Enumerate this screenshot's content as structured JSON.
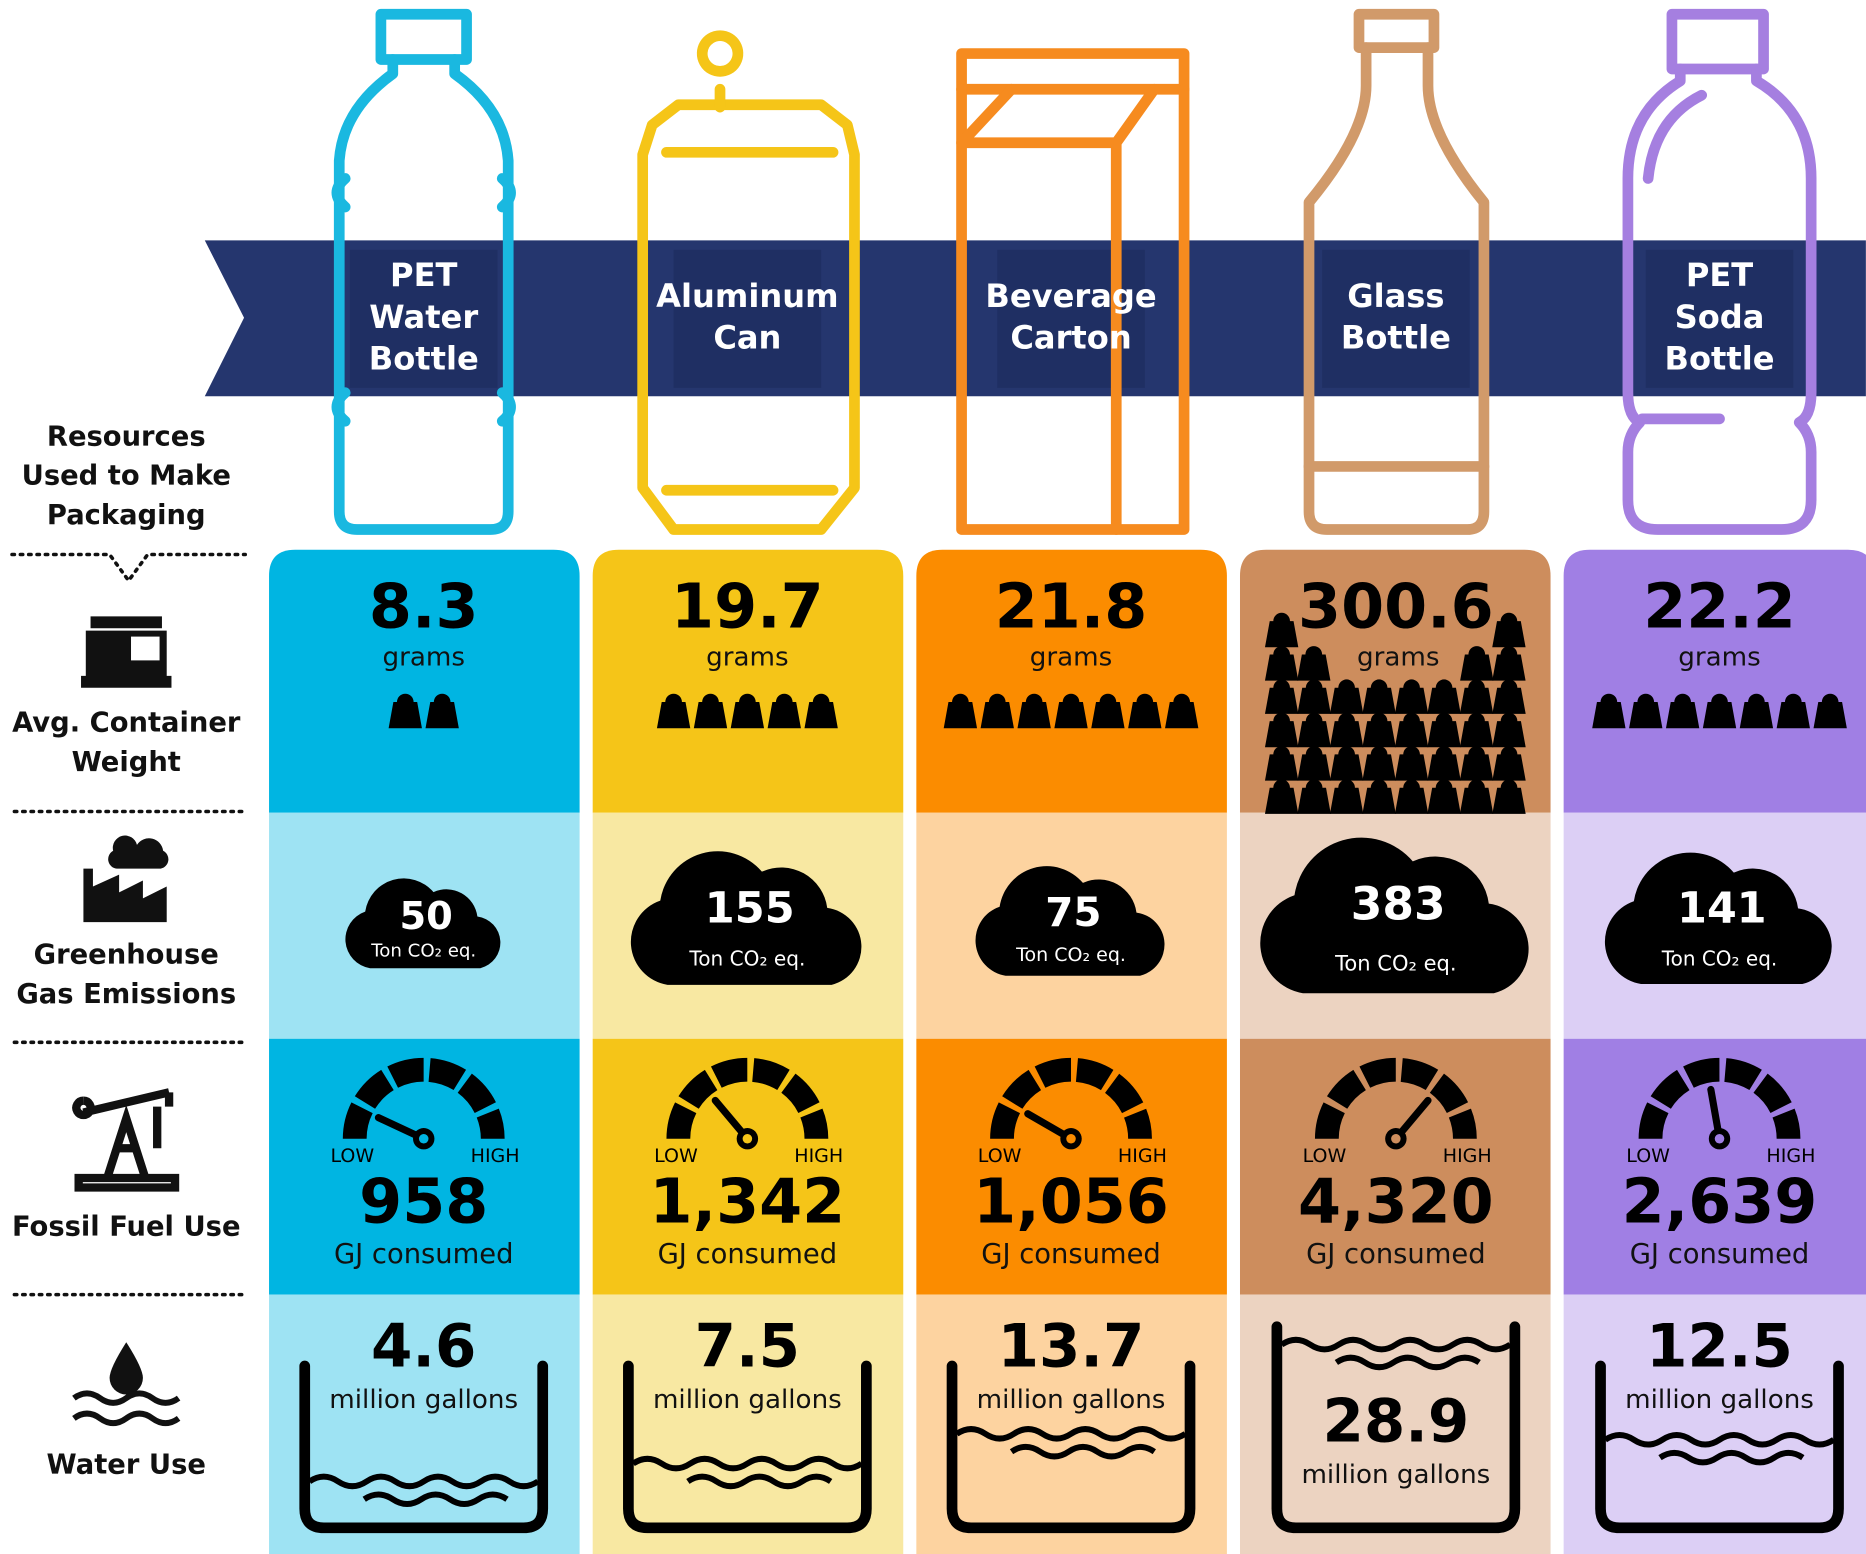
{
  "row_labels": {
    "resources": [
      "Resources",
      "Used to Make",
      "Packaging"
    ],
    "weight": [
      "Avg. Container",
      "Weight"
    ],
    "emissions": [
      "Greenhouse",
      "Gas Emissions"
    ],
    "fuel": [
      "Fossil Fuel Use"
    ],
    "water": [
      "Water Use"
    ]
  },
  "units": {
    "weight": "grams",
    "emissions": "Ton CO₂ eq.",
    "fuel": "GJ consumed",
    "water": "million gallons"
  },
  "gauge": {
    "low": "LOW",
    "high": "HIGH"
  },
  "columns": [
    {
      "name": [
        "PET",
        "Water",
        "Bottle"
      ],
      "weight": "8.3",
      "emissions": "50",
      "fuel": "958",
      "water": "4.6"
    },
    {
      "name": [
        "Aluminum",
        "Can"
      ],
      "weight": "19.7",
      "emissions": "155",
      "fuel": "1,342",
      "water": "7.5"
    },
    {
      "name": [
        "Beverage",
        "Carton"
      ],
      "weight": "21.8",
      "emissions": "75",
      "fuel": "1,056",
      "water": "13.7"
    },
    {
      "name": [
        "Glass",
        "Bottle"
      ],
      "weight": "300.6",
      "emissions": "383",
      "fuel": "4,320",
      "water": "28.9"
    },
    {
      "name": [
        "PET",
        "Soda",
        "Bottle"
      ],
      "weight": "22.2",
      "emissions": "141",
      "fuel": "2,639",
      "water": "12.5"
    }
  ]
}
